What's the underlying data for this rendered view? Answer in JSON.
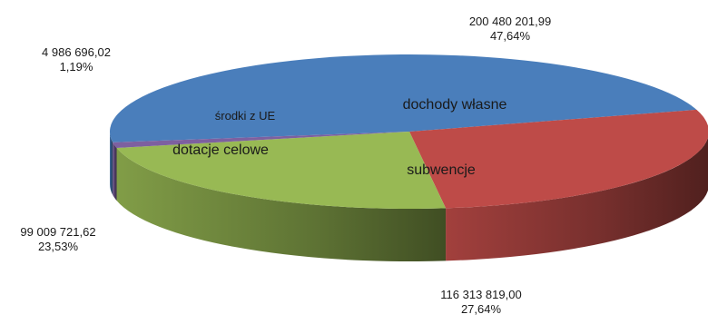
{
  "chart_data": {
    "type": "pie",
    "style": "3d-exploded-none",
    "title": "",
    "slices": [
      {
        "label": "dochody własne",
        "value": 200480201.99,
        "value_label": "200 480 201,99",
        "percent_label": "47,64%",
        "color": "#4a7ebb"
      },
      {
        "label": "subwencje",
        "value": 116313819.0,
        "value_label": "116 313 819,00",
        "percent_label": "27,64%",
        "color": "#be4b48"
      },
      {
        "label": "dotacje celowe",
        "value": 99009721.62,
        "value_label": "99 009 721,62",
        "percent_label": "23,53%",
        "color": "#98b954"
      },
      {
        "label": "środki  z UE",
        "value": 4986696.02,
        "value_label": "4 986 696,02",
        "percent_label": "1,19%",
        "color": "#7d60a0"
      }
    ]
  }
}
